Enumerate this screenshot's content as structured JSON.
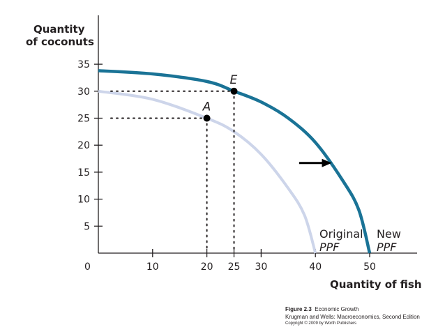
{
  "chart_data": {
    "type": "line",
    "xlabel": "Quantity of fish",
    "ylabel_line1": "Quantity",
    "ylabel_line2": "of coconuts",
    "xlim": [
      0,
      50
    ],
    "ylim": [
      0,
      35
    ],
    "x_ticks": [
      "10",
      "20",
      "25",
      "30",
      "40",
      "50"
    ],
    "x_tick_values": [
      10,
      20,
      25,
      30,
      40,
      50
    ],
    "origin_label": "0",
    "y_ticks": [
      "5",
      "10",
      "15",
      "20",
      "25",
      "30",
      "35"
    ],
    "y_tick_values": [
      5,
      10,
      15,
      20,
      25,
      30,
      35
    ],
    "grid": false,
    "series": [
      {
        "label_line1": "Original",
        "label_line2": "PPF",
        "color": "#cdd5ea",
        "x": [
          0,
          10,
          20,
          25,
          30,
          35,
          38,
          40
        ],
        "y": [
          30,
          28.5,
          25,
          22.5,
          18.3,
          12,
          7,
          0
        ]
      },
      {
        "label_line1": "New",
        "label_line2": "PPF",
        "color": "#1a7396",
        "x": [
          0,
          10,
          20,
          25,
          30,
          35,
          40,
          45,
          48,
          50
        ],
        "y": [
          33.8,
          33.2,
          31.8,
          30,
          28,
          25,
          20.5,
          13.5,
          8,
          0
        ]
      }
    ],
    "points": [
      {
        "label": "A",
        "x": 20,
        "y": 25
      },
      {
        "label": "E",
        "x": 25,
        "y": 30
      }
    ],
    "annotations": [
      {
        "type": "arrow",
        "from": [
          37,
          16.7
        ],
        "to": [
          43,
          16.7
        ]
      }
    ]
  },
  "caption": {
    "figure_label": "Figure 2.3",
    "figure_title": "Economic Growth",
    "source": "Krugman and Wells: Macroeconomics, Second Edition",
    "copyright": "Copyright © 2009 by Worth Publishers"
  },
  "colors": {
    "axis": "#231f20",
    "dotted": "#231f20",
    "arrow": "#000000"
  }
}
